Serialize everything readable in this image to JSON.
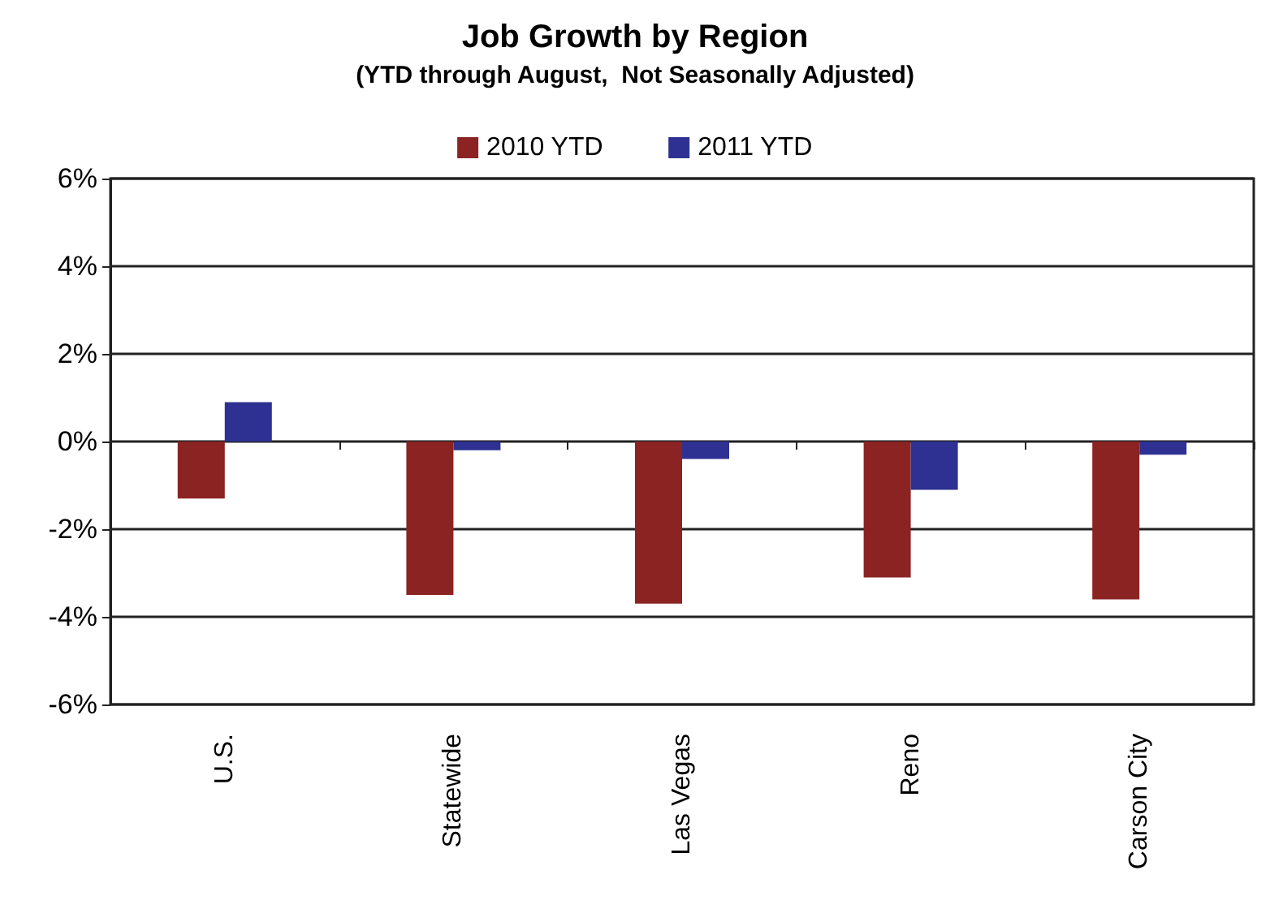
{
  "chart_data": {
    "type": "bar",
    "title": "Job Growth by Region",
    "subtitle": "(YTD through August,  Not Seasonally Adjusted)",
    "categories": [
      "U.S.",
      "Statewide",
      "Las Vegas",
      "Reno",
      "Carson City"
    ],
    "series": [
      {
        "name": "2010 YTD",
        "color": "#8b2323",
        "values": [
          -1.3,
          -3.5,
          -3.7,
          -3.1,
          -3.6
        ]
      },
      {
        "name": "2011 YTD",
        "color": "#2e3192",
        "values": [
          0.9,
          -0.2,
          -0.4,
          -1.1,
          -0.3
        ]
      }
    ],
    "ylim": [
      -6,
      6
    ],
    "yticks": [
      {
        "value": -6,
        "label": "-6%"
      },
      {
        "value": -4,
        "label": "-4%"
      },
      {
        "value": -2,
        "label": "-2%"
      },
      {
        "value": 0,
        "label": "0%"
      },
      {
        "value": 2,
        "label": "2%"
      },
      {
        "value": 4,
        "label": "4%"
      },
      {
        "value": 6,
        "label": "6%"
      }
    ],
    "grid": "y",
    "legend": "top"
  }
}
